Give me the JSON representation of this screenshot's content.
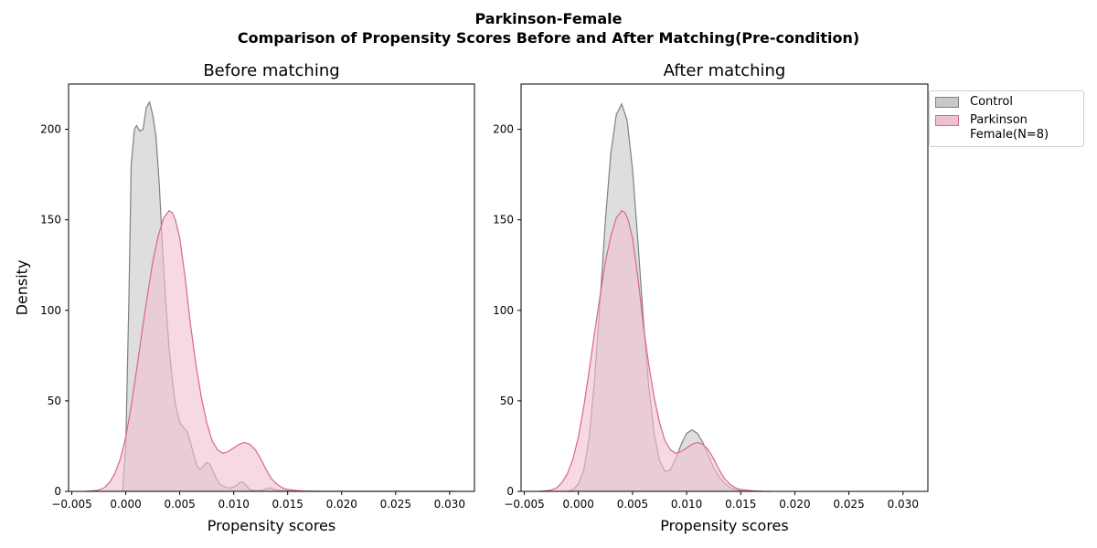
{
  "figure": {
    "title_line1": "Parkinson-Female",
    "title_line2": "Comparison of Propensity Scores Before and After Matching(Pre-condition)"
  },
  "colors": {
    "control_line": "#808080",
    "control_fill": "#c8c8c8",
    "parkinson_line": "#d9668f",
    "parkinson_fill": "#f0c0d2"
  },
  "legend": {
    "items": [
      {
        "label": "Control"
      },
      {
        "label": "Parkinson\nFemale(N=8)"
      }
    ]
  },
  "chart_data": [
    {
      "type": "area",
      "title": "Before matching",
      "xlabel": "Propensity scores",
      "ylabel": "Density",
      "xlim": [
        -0.0053,
        0.0323
      ],
      "ylim": [
        0,
        225
      ],
      "xticks": [
        -0.005,
        0.0,
        0.005,
        0.01,
        0.015,
        0.02,
        0.025,
        0.03
      ],
      "xtick_labels": [
        "−0.005",
        "0.000",
        "0.005",
        "0.010",
        "0.015",
        "0.020",
        "0.025",
        "0.030"
      ],
      "yticks": [
        0,
        50,
        100,
        150,
        200
      ],
      "ytick_labels": [
        "0",
        "50",
        "100",
        "150",
        "200"
      ],
      "grid": false,
      "series": [
        {
          "name": "Control",
          "x": [
            -0.0003,
            0.0,
            0.0003,
            0.0005,
            0.0008,
            0.001,
            0.0013,
            0.0016,
            0.0019,
            0.0022,
            0.0025,
            0.0028,
            0.0031,
            0.0034,
            0.0037,
            0.004,
            0.0043,
            0.0046,
            0.005,
            0.0054,
            0.0057,
            0.006,
            0.0063,
            0.0066,
            0.0069,
            0.0072,
            0.0075,
            0.0078,
            0.0081,
            0.0084,
            0.0087,
            0.009,
            0.0094,
            0.0098,
            0.0102,
            0.0106,
            0.0109,
            0.0112,
            0.0115,
            0.0118,
            0.0122,
            0.0126,
            0.013,
            0.0134,
            0.0138,
            0.0142,
            0.015,
            0.016,
            0.018,
            0.02,
            0.025,
            0.0305
          ],
          "y": [
            0,
            25,
            110,
            180,
            200,
            202,
            199,
            200,
            212,
            215,
            208,
            196,
            170,
            135,
            105,
            80,
            62,
            48,
            38,
            35,
            33,
            27,
            20,
            14,
            12,
            14,
            16,
            15,
            11,
            7,
            4,
            3,
            2,
            2,
            3,
            5,
            5,
            3,
            1,
            0.5,
            0.3,
            0.5,
            1.5,
            2,
            1,
            0.5,
            0.3,
            0.2,
            0.1,
            0.1,
            0.05,
            0
          ]
        },
        {
          "name": "Parkinson Female(N=8)",
          "x": [
            -0.0037,
            -0.003,
            -0.0025,
            -0.002,
            -0.0015,
            -0.001,
            -0.0005,
            0.0,
            0.0005,
            0.001,
            0.0015,
            0.002,
            0.0025,
            0.003,
            0.0035,
            0.004,
            0.0043,
            0.0046,
            0.005,
            0.0055,
            0.006,
            0.0065,
            0.007,
            0.0075,
            0.008,
            0.0085,
            0.009,
            0.0095,
            0.01,
            0.0105,
            0.011,
            0.0115,
            0.012,
            0.0125,
            0.013,
            0.0135,
            0.014,
            0.0145,
            0.015,
            0.016,
            0.017,
            0.0178
          ],
          "y": [
            0,
            0.3,
            0.8,
            2,
            5,
            10,
            18,
            30,
            47,
            67,
            88,
            108,
            127,
            141,
            151,
            155,
            154,
            150,
            140,
            118,
            92,
            70,
            52,
            38,
            28,
            23,
            21,
            22,
            24,
            26,
            27,
            26,
            23,
            18,
            12,
            7,
            4,
            2,
            1,
            0.4,
            0.1,
            0
          ]
        }
      ]
    },
    {
      "type": "area",
      "title": "After matching",
      "xlabel": "Propensity scores",
      "ylabel": "",
      "xlim": [
        -0.0053,
        0.0323
      ],
      "ylim": [
        0,
        225
      ],
      "xticks": [
        -0.005,
        0.0,
        0.005,
        0.01,
        0.015,
        0.02,
        0.025,
        0.03
      ],
      "xtick_labels": [
        "−0.005",
        "0.000",
        "0.005",
        "0.010",
        "0.015",
        "0.020",
        "0.025",
        "0.030"
      ],
      "yticks": [
        0,
        50,
        100,
        150,
        200
      ],
      "ytick_labels": [
        "0",
        "50",
        "100",
        "150",
        "200"
      ],
      "grid": false,
      "series": [
        {
          "name": "Control",
          "x": [
            -0.001,
            -0.0005,
            0.0,
            0.0005,
            0.001,
            0.0015,
            0.002,
            0.0025,
            0.003,
            0.0035,
            0.004,
            0.0045,
            0.005,
            0.0055,
            0.006,
            0.0065,
            0.007,
            0.0075,
            0.008,
            0.0085,
            0.009,
            0.0095,
            0.01,
            0.0105,
            0.011,
            0.0115,
            0.012,
            0.0125,
            0.013,
            0.0135,
            0.014,
            0.0145,
            0.015,
            0.0155,
            0.016
          ],
          "y": [
            0,
            1,
            4,
            12,
            30,
            62,
            105,
            150,
            187,
            208,
            214,
            205,
            178,
            138,
            95,
            58,
            32,
            17,
            11,
            12,
            18,
            26,
            32,
            34,
            32,
            27,
            20,
            13,
            8,
            4.5,
            2.2,
            1,
            0.4,
            0.1,
            0
          ]
        },
        {
          "name": "Parkinson Female(N=8)",
          "x": [
            -0.0037,
            -0.003,
            -0.0025,
            -0.002,
            -0.0015,
            -0.001,
            -0.0005,
            0.0,
            0.0005,
            0.001,
            0.0015,
            0.002,
            0.0025,
            0.003,
            0.0035,
            0.004,
            0.0043,
            0.0046,
            0.005,
            0.0055,
            0.006,
            0.0065,
            0.007,
            0.0075,
            0.008,
            0.0085,
            0.009,
            0.0095,
            0.01,
            0.0105,
            0.011,
            0.0115,
            0.012,
            0.0125,
            0.013,
            0.0135,
            0.014,
            0.0145,
            0.015,
            0.016,
            0.017,
            0.0178
          ],
          "y": [
            0,
            0.3,
            0.8,
            2,
            5,
            10,
            18,
            30,
            47,
            67,
            88,
            108,
            127,
            141,
            151,
            155,
            154,
            150,
            140,
            118,
            92,
            70,
            52,
            38,
            28,
            23,
            21,
            22,
            24,
            26,
            27,
            26,
            23,
            18,
            12,
            7,
            4,
            2,
            1,
            0.4,
            0.1,
            0
          ]
        }
      ]
    }
  ]
}
